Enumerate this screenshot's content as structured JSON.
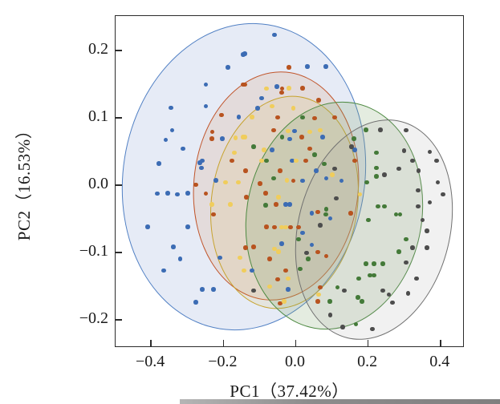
{
  "chart_data": {
    "type": "scatter",
    "title": "",
    "xlabel": "PC1（37.42%）",
    "ylabel": "PC2（16.53%）",
    "xlim": [
      -0.498,
      0.467
    ],
    "ylim": [
      -0.242,
      0.251
    ],
    "xticks": [
      -0.4,
      -0.2,
      0.0,
      0.2,
      0.4
    ],
    "yticks": [
      -0.2,
      -0.1,
      0.0,
      0.1,
      0.2
    ],
    "grid": false,
    "legend_position": "none",
    "frame_color": "#2b2b2b",
    "series": [
      {
        "name": "group-blue",
        "point_color": "#3c6cb4",
        "ellipse": {
          "cx": -0.142,
          "cy": 0.012,
          "rx": 0.335,
          "ry": 0.229,
          "rot_deg": 9,
          "stroke": "#5180c4",
          "fill": "rgba(99,133,198,0.16)"
        },
        "points": [
          [
            -0.145,
            0.194
          ],
          [
            -0.059,
            0.223
          ],
          [
            -0.141,
            0.195
          ],
          [
            -0.187,
            0.175
          ],
          [
            0.032,
            0.176
          ],
          [
            0.083,
            0.176
          ],
          [
            -0.249,
            0.149
          ],
          [
            -0.052,
            0.146
          ],
          [
            -0.094,
            0.129
          ],
          [
            -0.345,
            0.115
          ],
          [
            -0.249,
            0.117
          ],
          [
            -0.105,
            0.114
          ],
          [
            -0.157,
            0.101
          ],
          [
            -0.342,
            0.081
          ],
          [
            -0.203,
            0.069
          ],
          [
            -0.36,
            0.067
          ],
          [
            -0.003,
            0.08
          ],
          [
            -0.017,
            0.068
          ],
          [
            0.074,
            0.071
          ],
          [
            0.163,
            0.052
          ],
          [
            -0.312,
            0.054
          ],
          [
            -0.065,
            0.052
          ],
          [
            -0.378,
            0.032
          ],
          [
            -0.265,
            0.033
          ],
          [
            -0.258,
            0.036
          ],
          [
            -0.01,
            0.036
          ],
          [
            -0.261,
            0.025
          ],
          [
            0.057,
            0.021
          ],
          [
            -0.221,
            0.007
          ],
          [
            0.019,
            0.006
          ],
          [
            0.085,
            0.01
          ],
          [
            0.127,
            0.006
          ],
          [
            -0.383,
            -0.013
          ],
          [
            -0.354,
            -0.012
          ],
          [
            -0.327,
            -0.014
          ],
          [
            -0.298,
            -0.012
          ],
          [
            -0.028,
            -0.029
          ],
          [
            -0.017,
            -0.029
          ],
          [
            0.045,
            -0.042
          ],
          [
            0.096,
            -0.05
          ],
          [
            -0.409,
            -0.062
          ],
          [
            -0.298,
            -0.062
          ],
          [
            0.019,
            -0.071
          ],
          [
            -0.039,
            -0.087
          ],
          [
            0.045,
            -0.089
          ],
          [
            -0.338,
            -0.092
          ],
          [
            -0.32,
            -0.11
          ],
          [
            -0.21,
            -0.108
          ],
          [
            -0.121,
            -0.127
          ],
          [
            -0.365,
            -0.127
          ],
          [
            -0.258,
            -0.155
          ],
          [
            -0.227,
            -0.155
          ],
          [
            -0.021,
            -0.155
          ],
          [
            -0.276,
            -0.174
          ]
        ]
      },
      {
        "name": "group-orange",
        "point_color": "#b8531f",
        "ellipse": {
          "cx": -0.053,
          "cy": -0.001,
          "rx": 0.229,
          "ry": 0.17,
          "rot_deg": 5,
          "stroke": "#c1552b",
          "fill": "rgba(214,126,70,0.15)"
        },
        "points": [
          [
            -0.019,
            0.175
          ],
          [
            -0.145,
            0.149
          ],
          [
            -0.141,
            0.149
          ],
          [
            -0.037,
            0.143
          ],
          [
            0.019,
            0.144
          ],
          [
            -0.039,
            0.137
          ],
          [
            0.063,
            0.126
          ],
          [
            -0.205,
            0.104
          ],
          [
            -0.05,
            0.1
          ],
          [
            0.052,
            0.099
          ],
          [
            0.108,
            0.1
          ],
          [
            -0.231,
            0.079
          ],
          [
            -0.061,
            0.081
          ],
          [
            -0.232,
            0.069
          ],
          [
            0.017,
            0.071
          ],
          [
            0.039,
            0.054
          ],
          [
            -0.176,
            0.036
          ],
          [
            0.028,
            0.036
          ],
          [
            0.163,
            0.036
          ],
          [
            -0.139,
            0.021
          ],
          [
            -0.043,
            0.021
          ],
          [
            -0.276,
            0.0
          ],
          [
            -0.006,
            0.006
          ],
          [
            -0.099,
            0.002
          ],
          [
            -0.136,
            -0.018
          ],
          [
            -0.083,
            -0.012
          ],
          [
            -0.249,
            -0.013
          ],
          [
            -0.054,
            -0.029
          ],
          [
            0.061,
            -0.04
          ],
          [
            0.152,
            -0.042
          ],
          [
            -0.227,
            -0.044
          ],
          [
            -0.081,
            -0.062
          ],
          [
            -0.059,
            -0.063
          ],
          [
            -0.014,
            -0.063
          ],
          [
            0.008,
            -0.063
          ],
          [
            -0.139,
            -0.093
          ],
          [
            -0.116,
            -0.092
          ],
          [
            0.061,
            -0.1
          ],
          [
            0.085,
            -0.106
          ],
          [
            -0.072,
            -0.11
          ],
          [
            -0.028,
            -0.127
          ],
          [
            -0.05,
            -0.14
          ],
          [
            0.068,
            -0.152
          ],
          [
            -0.043,
            -0.176
          ],
          [
            0.061,
            -0.173
          ]
        ]
      },
      {
        "name": "group-yellow",
        "point_color": "#f0cd5c",
        "ellipse": {
          "cx": -0.031,
          "cy": -0.026,
          "rx": 0.203,
          "ry": 0.159,
          "rot_deg": 8,
          "stroke": "#c7a32d",
          "fill": "rgba(222,189,86,0.15)"
        },
        "points": [
          [
            -0.081,
            0.143
          ],
          [
            -0.019,
            0.144
          ],
          [
            -0.065,
            0.117
          ],
          [
            -0.006,
            0.114
          ],
          [
            -0.121,
            0.101
          ],
          [
            -0.021,
            0.08
          ],
          [
            0.039,
            0.079
          ],
          [
            0.068,
            0.081
          ],
          [
            -0.145,
            0.071
          ],
          [
            -0.167,
            0.07
          ],
          [
            -0.141,
            0.071
          ],
          [
            -0.088,
            0.052
          ],
          [
            -0.17,
            0.048
          ],
          [
            -0.094,
            0.036
          ],
          [
            0.001,
            0.036
          ],
          [
            -0.159,
            0.004
          ],
          [
            -0.194,
            0.004
          ],
          [
            -0.025,
            0.007
          ],
          [
            0.101,
            0.015
          ],
          [
            0.178,
            -0.014
          ],
          [
            -0.048,
            -0.018
          ],
          [
            -0.232,
            -0.029
          ],
          [
            -0.181,
            -0.029
          ],
          [
            -0.039,
            -0.063
          ],
          [
            -0.028,
            -0.063
          ],
          [
            -0.059,
            -0.095
          ],
          [
            -0.048,
            -0.099
          ],
          [
            -0.154,
            -0.108
          ],
          [
            -0.143,
            -0.127
          ],
          [
            -0.021,
            -0.139
          ],
          [
            -0.072,
            -0.151
          ],
          [
            -0.032,
            -0.173
          ],
          [
            0.063,
            -0.163
          ]
        ]
      },
      {
        "name": "group-green",
        "point_color": "#447a39",
        "ellipse": {
          "cx": 0.106,
          "cy": -0.045,
          "rx": 0.243,
          "ry": 0.17,
          "rot_deg": 10,
          "stroke": "#4e8a42",
          "fill": "rgba(122,160,98,0.20)"
        },
        "points": [
          [
            0.019,
            0.1
          ],
          [
            0.194,
            0.082
          ],
          [
            -0.037,
            0.071
          ],
          [
            0.161,
            0.069
          ],
          [
            -0.116,
            0.057
          ],
          [
            0.223,
            0.048
          ],
          [
            0.052,
            0.045
          ],
          [
            -0.081,
            0.036
          ],
          [
            0.079,
            0.031
          ],
          [
            0.223,
            0.025
          ],
          [
            0.223,
            0.013
          ],
          [
            -0.061,
            0.01
          ],
          [
            0.196,
            0.004
          ],
          [
            -0.083,
            -0.03
          ],
          [
            0.227,
            -0.032
          ],
          [
            0.245,
            -0.032
          ],
          [
            0.085,
            -0.036
          ],
          [
            0.083,
            -0.044
          ],
          [
            0.278,
            -0.044
          ],
          [
            0.289,
            -0.044
          ],
          [
            0.201,
            -0.052
          ],
          [
            0.008,
            -0.081
          ],
          [
            0.305,
            -0.081
          ],
          [
            0.285,
            -0.099
          ],
          [
            0.034,
            -0.11
          ],
          [
            0.194,
            -0.117
          ],
          [
            0.216,
            -0.117
          ],
          [
            0.241,
            -0.117
          ],
          [
            0.012,
            -0.125
          ],
          [
            0.205,
            -0.134
          ],
          [
            0.216,
            -0.134
          ],
          [
            0.174,
            -0.139
          ],
          [
            0.116,
            -0.152
          ],
          [
            0.172,
            -0.167
          ],
          [
            0.183,
            -0.173
          ],
          [
            0.094,
            -0.173
          ],
          [
            0.167,
            -0.207
          ]
        ]
      },
      {
        "name": "group-gray",
        "point_color": "#4d4d4d",
        "ellipse": {
          "cx": 0.216,
          "cy": -0.066,
          "rx": 0.211,
          "ry": 0.166,
          "rot_deg": 14,
          "stroke": "#707070",
          "fill": "rgba(160,160,160,0.15)"
        },
        "points": [
          [
            0.234,
            0.082
          ],
          [
            0.305,
            0.081
          ],
          [
            0.154,
            0.057
          ],
          [
            0.3,
            0.051
          ],
          [
            0.371,
            0.049
          ],
          [
            0.323,
            0.036
          ],
          [
            0.389,
            0.036
          ],
          [
            0.108,
            0.024
          ],
          [
            0.285,
            0.024
          ],
          [
            0.34,
            0.021
          ],
          [
            0.245,
            0.015
          ],
          [
            0.393,
            0.004
          ],
          [
            0.338,
            -0.008
          ],
          [
            0.407,
            -0.014
          ],
          [
            0.112,
            -0.02
          ],
          [
            0.371,
            -0.026
          ],
          [
            0.338,
            -0.032
          ],
          [
            0.351,
            -0.052
          ],
          [
            0.068,
            -0.06
          ],
          [
            0.363,
            -0.068
          ],
          [
            0.03,
            -0.101
          ],
          [
            0.323,
            -0.093
          ],
          [
            0.363,
            -0.093
          ],
          [
            0.305,
            -0.115
          ],
          [
            0.334,
            -0.139
          ],
          [
            0.134,
            -0.157
          ],
          [
            0.241,
            -0.157
          ],
          [
            0.258,
            -0.163
          ],
          [
            0.311,
            -0.161
          ],
          [
            0.267,
            -0.175
          ],
          [
            -0.116,
            -0.157
          ],
          [
            0.096,
            -0.193
          ],
          [
            0.13,
            -0.211
          ],
          [
            0.212,
            -0.214
          ]
        ]
      }
    ]
  }
}
